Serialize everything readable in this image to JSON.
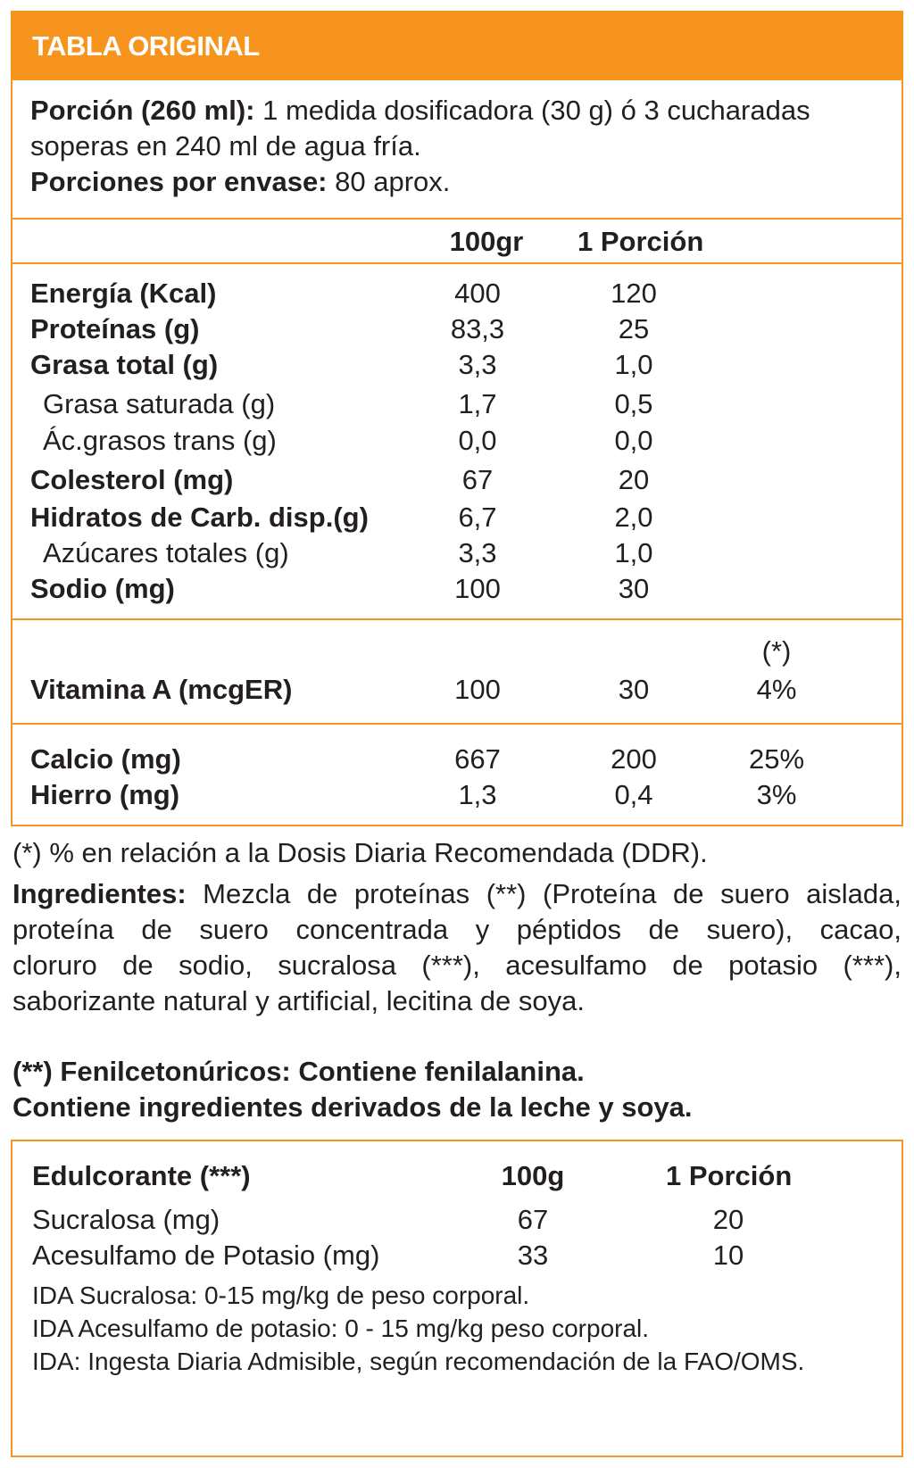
{
  "header": {
    "title": "TABLA ORIGINAL"
  },
  "serving": {
    "portion_label": "Porción (260 ml):",
    "portion_text_1": " 1 medida dosificadora (30 g) ó 3 cucharadas",
    "portion_text_2": "soperas en 240 ml de agua fría.",
    "servings_label": "Porciones por envase:",
    "servings_value": " 80 aprox."
  },
  "columns": {
    "col1": "100gr",
    "col2": "1 Porción"
  },
  "nutrients": [
    {
      "name": "Energía (Kcal)",
      "v100": "400",
      "vportion": "120",
      "bold": true
    },
    {
      "name": "Proteínas (g)",
      "v100": "83,3",
      "vportion": "25",
      "bold": true
    },
    {
      "name": "Grasa total (g)",
      "v100": "3,3",
      "vportion": "1,0",
      "bold": true
    },
    {
      "name": "Grasa saturada (g)",
      "v100": "1,7",
      "vportion": "0,5",
      "bold": false
    },
    {
      "name": "Ác.grasos trans (g)",
      "v100": "0,0",
      "vportion": "0,0",
      "bold": false
    },
    {
      "name": "Colesterol (mg)",
      "v100": "67",
      "vportion": "20",
      "bold": true
    },
    {
      "name": "Hidratos de Carb. disp.(g)",
      "v100": "6,7",
      "vportion": "2,0",
      "bold": true
    },
    {
      "name": "Azúcares totales (g)",
      "v100": "3,3",
      "vportion": "1,0",
      "bold": false
    },
    {
      "name": "Sodio (mg)",
      "v100": "100",
      "vportion": "30",
      "bold": true
    }
  ],
  "vitamins": {
    "ddr_header": "(*)",
    "rows": [
      {
        "name": "Vitamina A (mcgER)",
        "v100": "100",
        "vportion": "30",
        "ddr": "4%"
      }
    ]
  },
  "minerals": [
    {
      "name": "Calcio (mg)",
      "v100": "667",
      "vportion": "200",
      "ddr": "25%"
    },
    {
      "name": "Hierro (mg)",
      "v100": "1,3",
      "vportion": "0,4",
      "ddr": "3%"
    }
  ],
  "footnote_ddr": "(*) % en relación a la Dosis Diaria Recomendada (DDR).",
  "ingredients": {
    "label": "Ingredientes:",
    "line1": " Mezcla de proteínas (**) (Proteína de suero aislada,",
    "line2": "proteína de suero concentrada y péptidos de suero), cacao,",
    "line3": "cloruro de sodio, sucralosa (***), acesulfamo de potasio (***),",
    "line4": "saborizante natural y artificial, lecitina de soya."
  },
  "warnings": {
    "line1": "(**) Fenilcetonúricos: Contiene fenilalanina.",
    "line2": "Contiene ingredientes derivados de la leche y soya."
  },
  "sweeteners": {
    "header": "Edulcorante (***)",
    "col1": "100g",
    "col2": "1 Porción",
    "rows": [
      {
        "name": "Sucralosa (mg)",
        "v100": "67",
        "vportion": "20"
      },
      {
        "name": "Acesulfamo de Potasio (mg)",
        "v100": "33",
        "vportion": "10"
      }
    ],
    "notes": [
      "IDA Sucralosa: 0-15 mg/kg de peso corporal.",
      "IDA Acesulfamo de potasio: 0 - 15 mg/kg peso corporal.",
      "IDA: Ingesta Diaria Admisible, según recomendación de la FAO/OMS."
    ]
  },
  "colors": {
    "accent": "#f7941d",
    "text": "#231f20"
  }
}
